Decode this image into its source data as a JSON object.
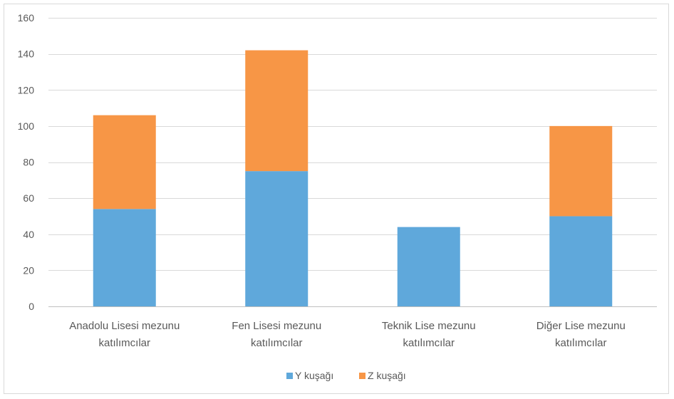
{
  "chart_data": {
    "type": "bar",
    "stacked": true,
    "categories": [
      [
        "Anadolu Lisesi mezunu",
        "katılımcılar"
      ],
      [
        "Fen Lisesi mezunu",
        "katılımcılar"
      ],
      [
        "Teknik Lise mezunu",
        "katılımcılar"
      ],
      [
        "Diğer Lise mezunu",
        "katılımcılar"
      ]
    ],
    "series": [
      {
        "name": "Y kuşağı",
        "color": "#5fa8db",
        "values": [
          54,
          75,
          44,
          50
        ]
      },
      {
        "name": "Z kuşağı",
        "color": "#f79646",
        "values": [
          52,
          67,
          0,
          50
        ]
      }
    ],
    "ylim": [
      0,
      160
    ],
    "yticks": [
      0,
      20,
      40,
      60,
      80,
      100,
      120,
      140,
      160
    ],
    "grid": true,
    "legend_position": "bottom",
    "title": "",
    "xlabel": "",
    "ylabel": ""
  }
}
